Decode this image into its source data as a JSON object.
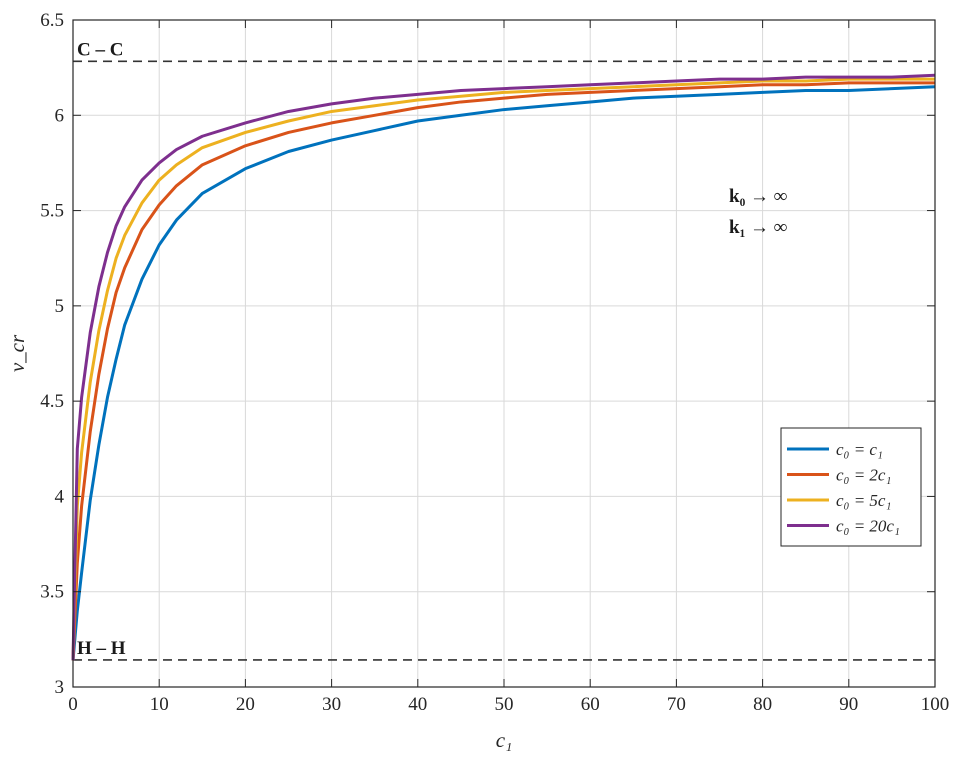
{
  "chart_data": {
    "type": "line",
    "title": "",
    "xlabel": "c₁",
    "ylabel": "v_cr",
    "xlim": [
      0,
      100
    ],
    "ylim": [
      3,
      6.5
    ],
    "grid": true,
    "legend_position": "right",
    "x_ticks": [
      "0",
      "10",
      "20",
      "30",
      "40",
      "50",
      "60",
      "70",
      "80",
      "90",
      "100"
    ],
    "y_ticks": [
      "3",
      "3.5",
      "4",
      "4.5",
      "5",
      "5.5",
      "6",
      "6.5"
    ],
    "reference_lines": [
      {
        "label": "C – C",
        "y": 6.283
      },
      {
        "label": "H – H",
        "y": 3.142
      }
    ],
    "annotations": [
      "k₀ → ∞",
      "k₁ → ∞"
    ],
    "x": [
      0,
      0.5,
      1,
      2,
      3,
      4,
      5,
      6,
      8,
      10,
      12,
      15,
      20,
      25,
      30,
      35,
      40,
      45,
      50,
      55,
      60,
      65,
      70,
      75,
      80,
      85,
      90,
      95,
      100
    ],
    "series": [
      {
        "name": "c₀ = c₁",
        "color": "#0072BD",
        "values": [
          3.14,
          3.4,
          3.6,
          3.98,
          4.27,
          4.52,
          4.72,
          4.9,
          5.14,
          5.32,
          5.45,
          5.59,
          5.72,
          5.81,
          5.87,
          5.92,
          5.97,
          6.0,
          6.03,
          6.05,
          6.07,
          6.09,
          6.1,
          6.11,
          6.12,
          6.13,
          6.13,
          6.14,
          6.15
        ]
      },
      {
        "name": "c₀ = 2c₁",
        "color": "#D95319",
        "values": [
          3.14,
          3.65,
          3.95,
          4.34,
          4.64,
          4.88,
          5.07,
          5.2,
          5.4,
          5.53,
          5.63,
          5.74,
          5.84,
          5.91,
          5.96,
          6.0,
          6.04,
          6.07,
          6.09,
          6.11,
          6.12,
          6.13,
          6.14,
          6.15,
          6.16,
          6.16,
          6.17,
          6.17,
          6.17
        ]
      },
      {
        "name": "c₀ = 5c₁",
        "color": "#EDB120",
        "values": [
          3.14,
          3.95,
          4.23,
          4.6,
          4.87,
          5.08,
          5.25,
          5.37,
          5.54,
          5.66,
          5.74,
          5.83,
          5.91,
          5.97,
          6.02,
          6.05,
          6.08,
          6.1,
          6.12,
          6.13,
          6.14,
          6.15,
          6.16,
          6.17,
          6.18,
          6.18,
          6.19,
          6.19,
          6.19
        ]
      },
      {
        "name": "c₀ = 20c₁",
        "color": "#7E2F8E",
        "values": [
          3.14,
          4.25,
          4.52,
          4.86,
          5.1,
          5.28,
          5.42,
          5.52,
          5.66,
          5.75,
          5.82,
          5.89,
          5.96,
          6.02,
          6.06,
          6.09,
          6.11,
          6.13,
          6.14,
          6.15,
          6.16,
          6.17,
          6.18,
          6.19,
          6.19,
          6.2,
          6.2,
          6.2,
          6.21
        ]
      }
    ]
  }
}
